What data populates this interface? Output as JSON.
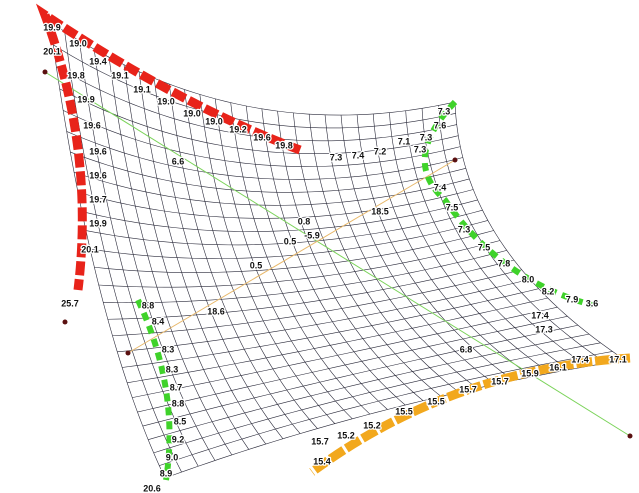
{
  "labels": {
    "red_edge": [
      "19.9",
      "19.0",
      "20.1",
      "19.4",
      "19.1",
      "19.8",
      "19.1",
      "19.9",
      "19.0",
      "19.0",
      "19.6",
      "19.0",
      "19.2",
      "19.6",
      "19.6",
      "19.8",
      "19.6",
      "19.7",
      "19.9",
      "20.1",
      "25.7"
    ],
    "green_edge_top": [
      "7.3",
      "7.6",
      "7.3",
      "7.1",
      "7.3",
      "7.2",
      "7.4",
      "7.3",
      "7.4",
      "7.5",
      "7.3",
      "7.5",
      "7.8",
      "8.0",
      "8.2",
      "7.9",
      "3.6"
    ],
    "green_edge_left": [
      "8.8",
      "8.4",
      "8.3",
      "8.3",
      "8.7",
      "8.8",
      "8.5",
      "9.2",
      "9.0",
      "8.9",
      "20.6"
    ],
    "orange_edge": [
      "17.1",
      "17.4",
      "16.1",
      "15.9",
      "15.7",
      "15.7",
      "15.5",
      "15.5",
      "15.2",
      "15.2",
      "15.7",
      "15.4"
    ],
    "interior": [
      "6.6",
      "18.5",
      "0.8",
      "-5.9",
      "0.5",
      "0.5",
      "18.6",
      "6.8",
      "17.4",
      "17.3"
    ]
  }
}
